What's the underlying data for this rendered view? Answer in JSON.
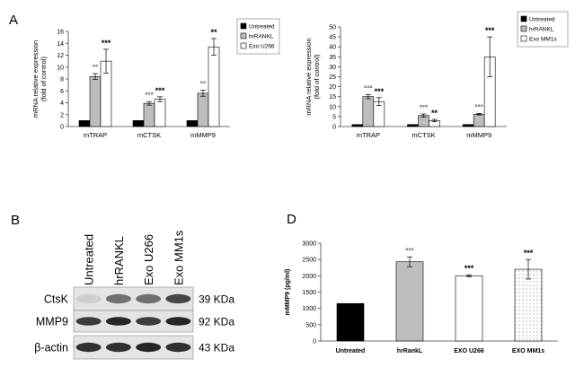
{
  "panels": {
    "a": "A",
    "b": "B",
    "d": "D"
  },
  "colors": {
    "untreated": "#000000",
    "hrrankl": "#bdbdbd",
    "exo": "#ffffff",
    "error_bar": "#000000",
    "axis": "#444444"
  },
  "chart_data": [
    {
      "id": "A-left",
      "type": "bar",
      "ylabel": "mRNA relative expression\n(fold of control)",
      "categories": [
        "mTRAP",
        "mCTSK",
        "mMMP9"
      ],
      "ylim": [
        0,
        16
      ],
      "yticks": [
        0,
        2,
        4,
        6,
        8,
        10,
        12,
        14,
        16
      ],
      "legend_position": "top-right",
      "series": [
        {
          "name": "Untreated",
          "fill": "black",
          "values": [
            1.0,
            1.0,
            1.0
          ],
          "errors": [
            0,
            0,
            0
          ],
          "marks": [
            "",
            "",
            ""
          ]
        },
        {
          "name": "hrRANKL",
          "fill": "gray",
          "values": [
            8.4,
            3.9,
            5.6
          ],
          "errors": [
            0.5,
            0.3,
            0.5
          ],
          "marks": [
            "°°",
            "°°°",
            "°°"
          ]
        },
        {
          "name": "Exo U266",
          "fill": "white",
          "values": [
            11.0,
            4.6,
            13.4
          ],
          "errors": [
            2.0,
            0.4,
            1.4
          ],
          "marks": [
            "***",
            "***",
            "**"
          ]
        }
      ]
    },
    {
      "id": "A-right",
      "type": "bar",
      "ylabel": "mRNA relative expression\n(fold of control)",
      "categories": [
        "mTRAP",
        "mCTSK",
        "mMMP9"
      ],
      "ylim": [
        0,
        50
      ],
      "yticks": [
        0,
        5,
        10,
        15,
        20,
        25,
        30,
        35,
        40,
        45,
        50
      ],
      "legend_position": "top-right",
      "series": [
        {
          "name": "Untreated",
          "fill": "black",
          "values": [
            1.0,
            1.0,
            1.0
          ],
          "errors": [
            0,
            0,
            0
          ],
          "marks": [
            "",
            "",
            ""
          ]
        },
        {
          "name": "hrRANKL",
          "fill": "gray",
          "values": [
            15.0,
            5.5,
            6.2
          ],
          "errors": [
            1.0,
            0.8,
            0.4
          ],
          "marks": [
            "°°°",
            "°°°",
            "°°°"
          ]
        },
        {
          "name": "Exo MM1s",
          "fill": "white",
          "values": [
            12.5,
            3.0,
            35.0
          ],
          "errors": [
            2.0,
            0.6,
            10.0
          ],
          "marks": [
            "***",
            "**",
            "***"
          ]
        }
      ]
    },
    {
      "id": "D",
      "type": "bar",
      "ylabel": "mMMP9 (pg/ml)",
      "categories": [
        "Untreated",
        "hrRankL",
        "EXO U266",
        "EXO MM1s"
      ],
      "ylim": [
        0,
        3000
      ],
      "yticks": [
        0,
        500,
        1000,
        1500,
        2000,
        2500,
        3000
      ],
      "values": [
        1150,
        2430,
        2000,
        2200
      ],
      "errors": [
        0,
        150,
        30,
        300
      ],
      "fills": [
        "black",
        "gray",
        "white",
        "dotted"
      ],
      "marks": [
        "",
        "°°°",
        "***",
        "***"
      ]
    }
  ],
  "blot": {
    "lanes": [
      "Untreated",
      "hrRANKL",
      "Exo U266",
      "Exo MM1s"
    ],
    "rows": [
      {
        "protein": "CtsK",
        "size": "39 KDa",
        "intensities": [
          0.1,
          0.55,
          0.55,
          0.75
        ]
      },
      {
        "protein": "MMP9",
        "size": "92 KDa",
        "intensities": [
          0.8,
          0.9,
          0.8,
          0.9
        ]
      },
      {
        "protein": "β-actin",
        "size": "43 KDa",
        "intensities": [
          0.85,
          0.85,
          0.9,
          0.85
        ]
      }
    ]
  }
}
